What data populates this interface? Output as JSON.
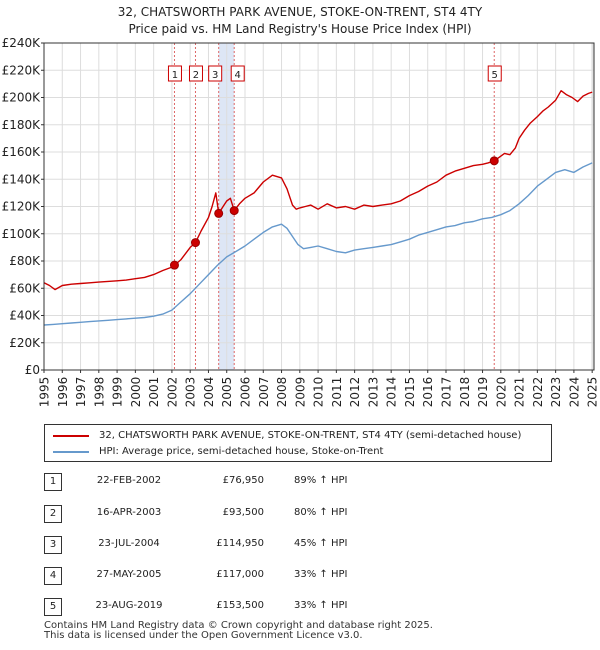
{
  "chart_data": {
    "type": "line",
    "title": "32, CHATSWORTH PARK AVENUE, STOKE-ON-TRENT, ST4 4TY",
    "subtitle": "Price paid vs. HM Land Registry's House Price Index (HPI)",
    "xlabel": "",
    "ylabel": "",
    "xlim": [
      1995.0,
      2025.1
    ],
    "ylim": [
      0,
      240000
    ],
    "grid": true,
    "y_ticks": [
      0,
      20000,
      40000,
      60000,
      80000,
      100000,
      120000,
      140000,
      160000,
      180000,
      200000,
      220000,
      240000
    ],
    "y_tick_labels": [
      "£0",
      "£20K",
      "£40K",
      "£60K",
      "£80K",
      "£100K",
      "£120K",
      "£140K",
      "£160K",
      "£180K",
      "£200K",
      "£220K",
      "£240K"
    ],
    "x_ticks": [
      1995,
      1996,
      1997,
      1998,
      1999,
      2000,
      2001,
      2002,
      2003,
      2004,
      2005,
      2006,
      2007,
      2008,
      2009,
      2010,
      2011,
      2012,
      2013,
      2014,
      2015,
      2016,
      2017,
      2018,
      2019,
      2020,
      2021,
      2022,
      2023,
      2024,
      2025
    ],
    "x_tick_labels": [
      "1995",
      "1996",
      "1997",
      "1998",
      "1999",
      "2000",
      "2001",
      "2002",
      "2003",
      "2004",
      "2005",
      "2006",
      "2007",
      "2008",
      "2009",
      "2010",
      "2011",
      "2012",
      "2013",
      "2014",
      "2015",
      "2016",
      "2017",
      "2018",
      "2019",
      "2020",
      "2021",
      "2022",
      "2023",
      "2024",
      "2025"
    ],
    "series": [
      {
        "name": "32, CHATSWORTH PARK AVENUE, STOKE-ON-TRENT, ST4 4TY (semi-detached house)",
        "color": "#cc0000",
        "x": [
          1995.0,
          1995.3,
          1995.6,
          1996.0,
          1996.5,
          1997.0,
          1997.5,
          1998.0,
          1998.5,
          1999.0,
          1999.5,
          2000.0,
          2000.5,
          2001.0,
          2001.5,
          2002.0,
          2002.14,
          2002.5,
          2003.0,
          2003.29,
          2003.6,
          2004.0,
          2004.2,
          2004.4,
          2004.56,
          2004.8,
          2005.0,
          2005.2,
          2005.41,
          2005.7,
          2006.0,
          2006.5,
          2007.0,
          2007.5,
          2008.0,
          2008.3,
          2008.6,
          2008.8,
          2009.0,
          2009.3,
          2009.6,
          2010.0,
          2010.5,
          2011.0,
          2011.5,
          2012.0,
          2012.5,
          2013.0,
          2013.5,
          2014.0,
          2014.5,
          2015.0,
          2015.5,
          2016.0,
          2016.5,
          2017.0,
          2017.5,
          2018.0,
          2018.5,
          2019.0,
          2019.3,
          2019.64,
          2019.9,
          2020.2,
          2020.5,
          2020.8,
          2021.0,
          2021.3,
          2021.6,
          2022.0,
          2022.3,
          2022.6,
          2023.0,
          2023.3,
          2023.6,
          2023.9,
          2024.2,
          2024.5,
          2024.8,
          2025.0
        ],
        "values": [
          64000,
          62000,
          59000,
          62000,
          63000,
          63500,
          64000,
          64500,
          65000,
          65500,
          66000,
          67000,
          68000,
          70000,
          73000,
          75500,
          76950,
          81000,
          90000,
          93500,
          102000,
          112000,
          120000,
          130000,
          114950,
          120000,
          124000,
          126000,
          117000,
          122000,
          126000,
          130000,
          138000,
          143000,
          141000,
          133000,
          121000,
          118000,
          119000,
          120000,
          121000,
          118000,
          122000,
          119000,
          120000,
          118000,
          121000,
          120000,
          121000,
          122000,
          124000,
          128000,
          131000,
          135000,
          138000,
          143000,
          146000,
          148000,
          150000,
          151000,
          152000,
          153500,
          156000,
          159000,
          158000,
          163000,
          170000,
          176000,
          181000,
          186000,
          190000,
          193000,
          198000,
          205000,
          202000,
          200000,
          197000,
          201000,
          203000,
          204000
        ]
      },
      {
        "name": "HPI: Average price, semi-detached house, Stoke-on-Trent",
        "color": "#6699cc",
        "x": [
          1995.0,
          1995.5,
          1996.0,
          1996.5,
          1997.0,
          1997.5,
          1998.0,
          1998.5,
          1999.0,
          1999.5,
          2000.0,
          2000.5,
          2001.0,
          2001.5,
          2002.0,
          2002.5,
          2003.0,
          2003.5,
          2004.0,
          2004.5,
          2005.0,
          2005.5,
          2006.0,
          2006.5,
          2007.0,
          2007.5,
          2008.0,
          2008.3,
          2008.6,
          2008.9,
          2009.2,
          2009.6,
          2010.0,
          2010.5,
          2011.0,
          2011.5,
          2012.0,
          2012.5,
          2013.0,
          2013.5,
          2014.0,
          2014.5,
          2015.0,
          2015.5,
          2016.0,
          2016.5,
          2017.0,
          2017.5,
          2018.0,
          2018.5,
          2019.0,
          2019.5,
          2020.0,
          2020.5,
          2021.0,
          2021.5,
          2022.0,
          2022.5,
          2023.0,
          2023.5,
          2024.0,
          2024.5,
          2025.0
        ],
        "values": [
          33000,
          33500,
          34000,
          34500,
          35000,
          35500,
          36000,
          36500,
          37000,
          37500,
          38000,
          38500,
          39500,
          41000,
          44000,
          50000,
          56000,
          63000,
          70000,
          77000,
          83000,
          87000,
          91000,
          96000,
          101000,
          105000,
          107000,
          104000,
          98000,
          92000,
          89000,
          90000,
          91000,
          89000,
          87000,
          86000,
          88000,
          89000,
          90000,
          91000,
          92000,
          94000,
          96000,
          99000,
          101000,
          103000,
          105000,
          106000,
          108000,
          109000,
          111000,
          112000,
          114000,
          117000,
          122000,
          128000,
          135000,
          140000,
          145000,
          147000,
          145000,
          149000,
          152000
        ]
      }
    ],
    "sales": [
      {
        "label": "1",
        "x": 2002.14,
        "price": 76950
      },
      {
        "label": "2",
        "x": 2003.29,
        "price": 93500
      },
      {
        "label": "3",
        "x": 2004.56,
        "price": 114950
      },
      {
        "label": "4",
        "x": 2005.41,
        "price": 117000
      },
      {
        "label": "5",
        "x": 2019.64,
        "price": 153500
      }
    ]
  },
  "legend": {
    "property_label": "32, CHATSWORTH PARK AVENUE, STOKE-ON-TRENT, ST4 4TY (semi-detached house)",
    "hpi_label": "HPI: Average price, semi-detached house, Stoke-on-Trent"
  },
  "sales_table": [
    {
      "num": "1",
      "date": "22-FEB-2002",
      "price": "£76,950",
      "hpi": "89% ↑ HPI"
    },
    {
      "num": "2",
      "date": "16-APR-2003",
      "price": "£93,500",
      "hpi": "80% ↑ HPI"
    },
    {
      "num": "3",
      "date": "23-JUL-2004",
      "price": "£114,950",
      "hpi": "45% ↑ HPI"
    },
    {
      "num": "4",
      "date": "27-MAY-2005",
      "price": "£117,000",
      "hpi": "33% ↑ HPI"
    },
    {
      "num": "5",
      "date": "23-AUG-2019",
      "price": "£153,500",
      "hpi": "33% ↑ HPI"
    }
  ],
  "footer": {
    "line1": "Contains HM Land Registry data © Crown copyright and database right 2025.",
    "line2": "This data is licensed under the Open Government Licence v3.0."
  },
  "colors": {
    "property": "#cc0000",
    "hpi": "#6699cc",
    "highlight_band": "#dde6f5",
    "grid": "#dddddd"
  }
}
